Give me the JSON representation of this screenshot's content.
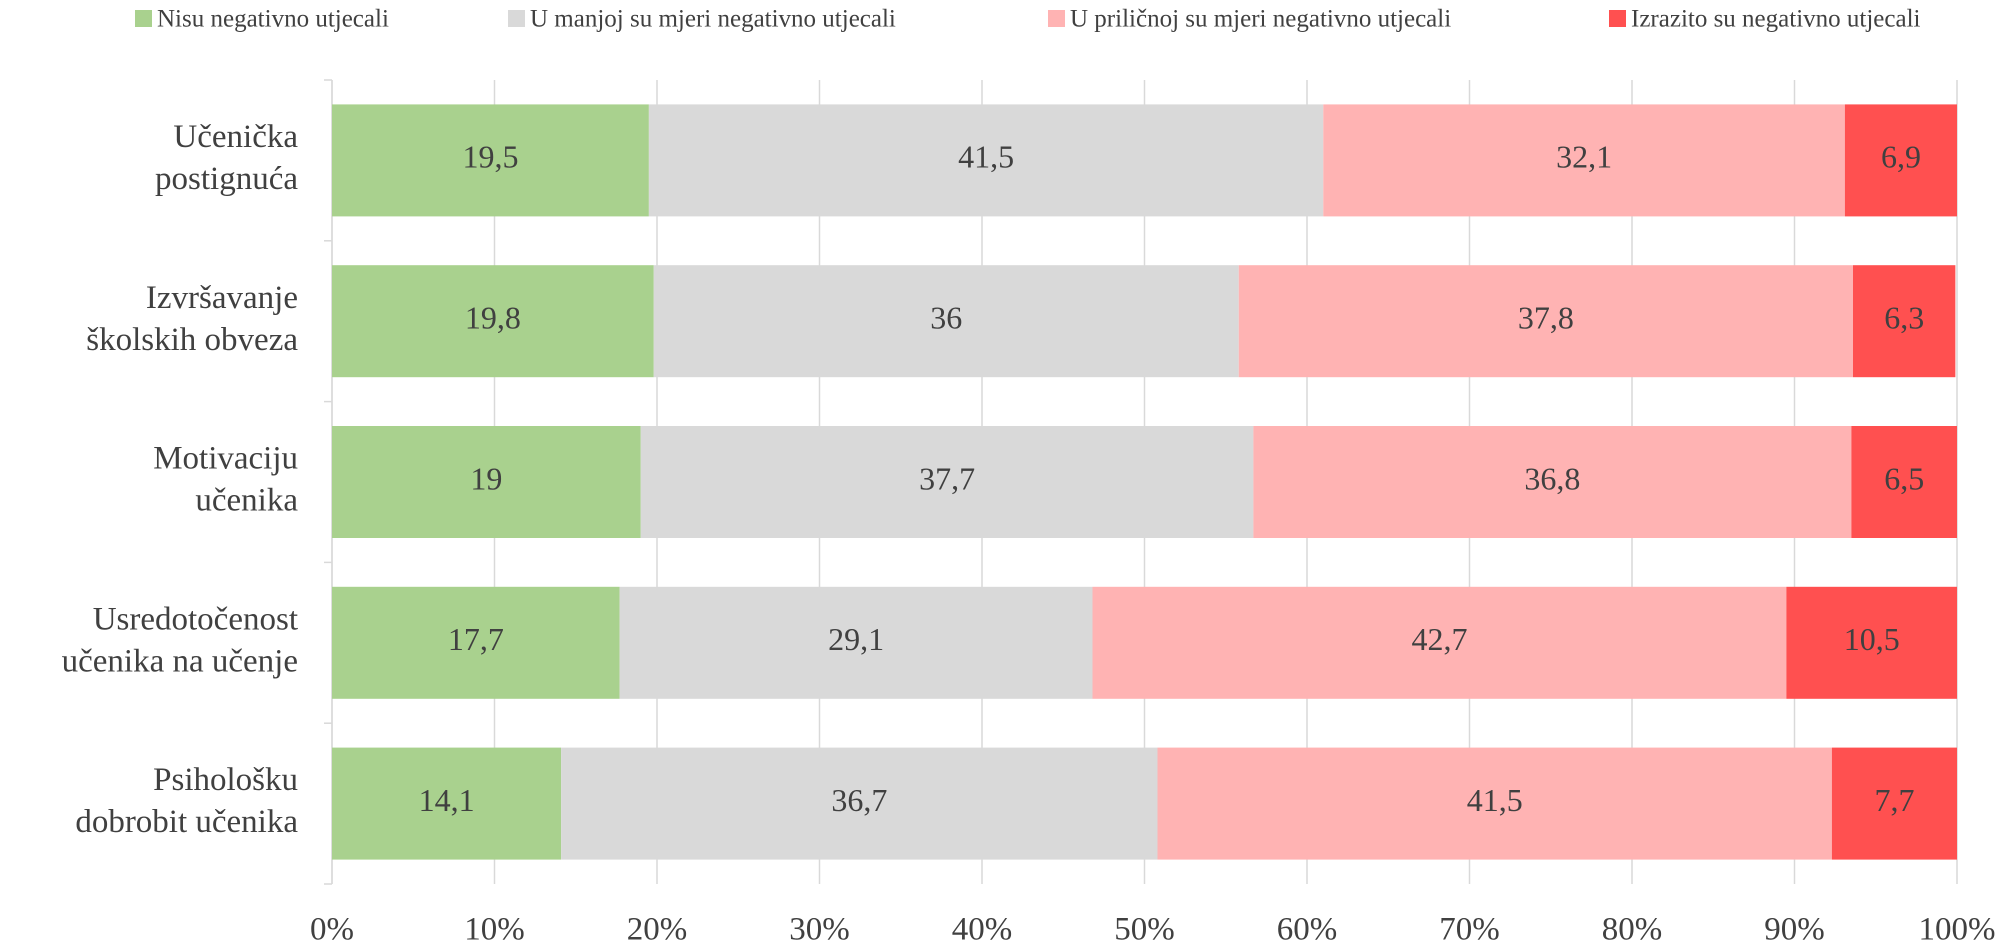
{
  "chart_data": {
    "type": "bar",
    "orientation": "horizontal",
    "stacked": true,
    "categories": [
      [
        "Učenička",
        "postignuća"
      ],
      [
        "Izvršavanje",
        "školskih obveza"
      ],
      [
        "Motivaciju",
        "učenika"
      ],
      [
        "Usredotočenost",
        "učenika na učenje"
      ],
      [
        "Psihološku",
        "dobrobit učenika"
      ]
    ],
    "series": [
      {
        "name": "Nisu negativno utjecali",
        "color": "#a9d18e",
        "values": [
          19.5,
          19.8,
          19,
          17.7,
          14.1
        ],
        "value_labels": [
          "19,5",
          "19,8",
          "19",
          "17,7",
          "14,1"
        ]
      },
      {
        "name": "U manjoj su mjeri negativno utjecali",
        "color": "#d9d9d9",
        "values": [
          41.5,
          36,
          37.7,
          29.1,
          36.7
        ],
        "value_labels": [
          "41,5",
          "36",
          "37,7",
          "29,1",
          "36,7"
        ]
      },
      {
        "name": "U priličnoj su mjeri negativno utjecali",
        "color": "#ffb3b3",
        "values": [
          32.1,
          37.8,
          36.8,
          42.7,
          41.5
        ],
        "value_labels": [
          "32,1",
          "37,8",
          "36,8",
          "42,7",
          "41,5"
        ]
      },
      {
        "name": "Izrazito su negativno utjecali",
        "color": "#ff5050",
        "values": [
          6.9,
          6.3,
          6.5,
          10.5,
          7.7
        ],
        "value_labels": [
          "6,9",
          "6,3",
          "6,5",
          "10,5",
          "7,7"
        ]
      }
    ],
    "xlim": [
      0,
      100
    ],
    "xticks": [
      {
        "value": 0,
        "label": "0%"
      },
      {
        "value": 10,
        "label": "10%"
      },
      {
        "value": 20,
        "label": "20%"
      },
      {
        "value": 30,
        "label": "30%"
      },
      {
        "value": 40,
        "label": "40%"
      },
      {
        "value": 50,
        "label": "50%"
      },
      {
        "value": 60,
        "label": "60%"
      },
      {
        "value": 70,
        "label": "70%"
      },
      {
        "value": 80,
        "label": "80%"
      },
      {
        "value": 90,
        "label": "90%"
      },
      {
        "value": 100,
        "label": "100%"
      }
    ],
    "grid": true,
    "legend": "top"
  }
}
